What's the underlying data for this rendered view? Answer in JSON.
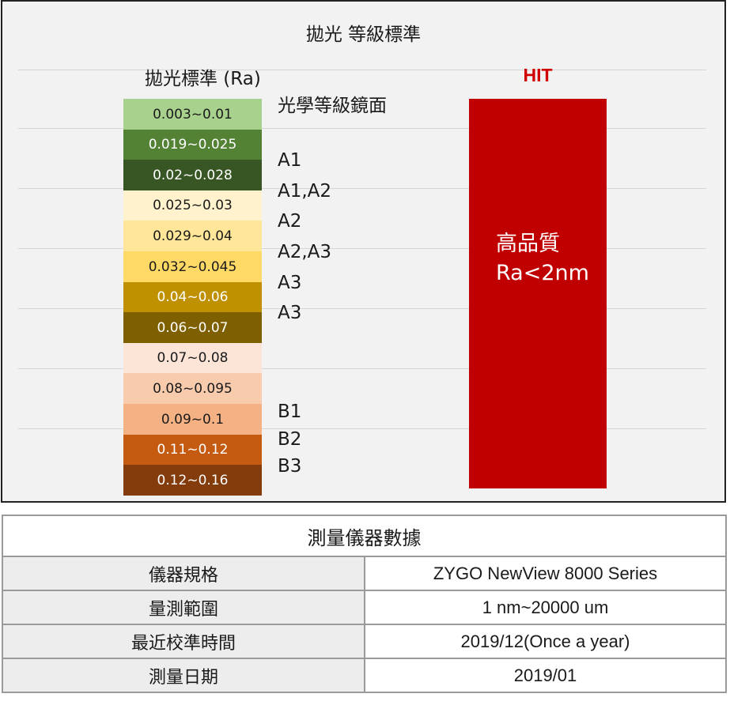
{
  "chart_data": {
    "type": "bar",
    "title": "拋光 等級標準",
    "scale_heading": "拋光標準 (Ra)",
    "optical_grade_label": "光學等級鏡面",
    "bands": [
      {
        "range": "0.003~0.01",
        "grade": "",
        "color": "#a9d18e",
        "text_color": "#1a1a1a"
      },
      {
        "range": "0.019~0.025",
        "grade": "",
        "color": "#548235",
        "text_color": "#ffffff"
      },
      {
        "range": "0.02~0.028",
        "grade": "A1",
        "color": "#375623",
        "text_color": "#ffffff"
      },
      {
        "range": "0.025~0.03",
        "grade": "A1,A2",
        "color": "#fff2cc",
        "text_color": "#1a1a1a"
      },
      {
        "range": "0.029~0.04",
        "grade": "A2",
        "color": "#ffe699",
        "text_color": "#1a1a1a"
      },
      {
        "range": "0.032~0.045",
        "grade": "A2,A3",
        "color": "#ffd966",
        "text_color": "#1a1a1a"
      },
      {
        "range": "0.04~0.06",
        "grade": "A3",
        "color": "#bf9000",
        "text_color": "#ffffff"
      },
      {
        "range": "0.06~0.07",
        "grade": "A3",
        "color": "#7f6000",
        "text_color": "#ffffff"
      },
      {
        "range": "0.07~0.08",
        "grade": "",
        "color": "#fce4d6",
        "text_color": "#1a1a1a"
      },
      {
        "range": "0.08~0.095",
        "grade": "",
        "color": "#f8cbad",
        "text_color": "#1a1a1a"
      },
      {
        "range": "0.09~0.1",
        "grade": "B1",
        "color": "#f4b183",
        "text_color": "#1a1a1a"
      },
      {
        "range": "0.11~0.12",
        "grade": "B2",
        "color": "#c55a11",
        "text_color": "#ffffff"
      },
      {
        "range": "0.12~0.16",
        "grade": "B3",
        "color": "#843c0c",
        "text_color": "#ffffff"
      }
    ],
    "comparison": {
      "name": "HIT",
      "color": "#c00000",
      "label_color": "#d00000",
      "quality_label": "高品質",
      "ra_label": "Ra<2nm"
    }
  },
  "table": {
    "header": "測量儀器數據",
    "rows": [
      {
        "key": "儀器規格",
        "value": "ZYGO NewView 8000 Series"
      },
      {
        "key": "量測範圍",
        "value": "1 nm~20000 um"
      },
      {
        "key": "最近校準時間",
        "value": "2019/12(Once a year)"
      },
      {
        "key": "測量日期",
        "value": "2019/01"
      }
    ]
  }
}
